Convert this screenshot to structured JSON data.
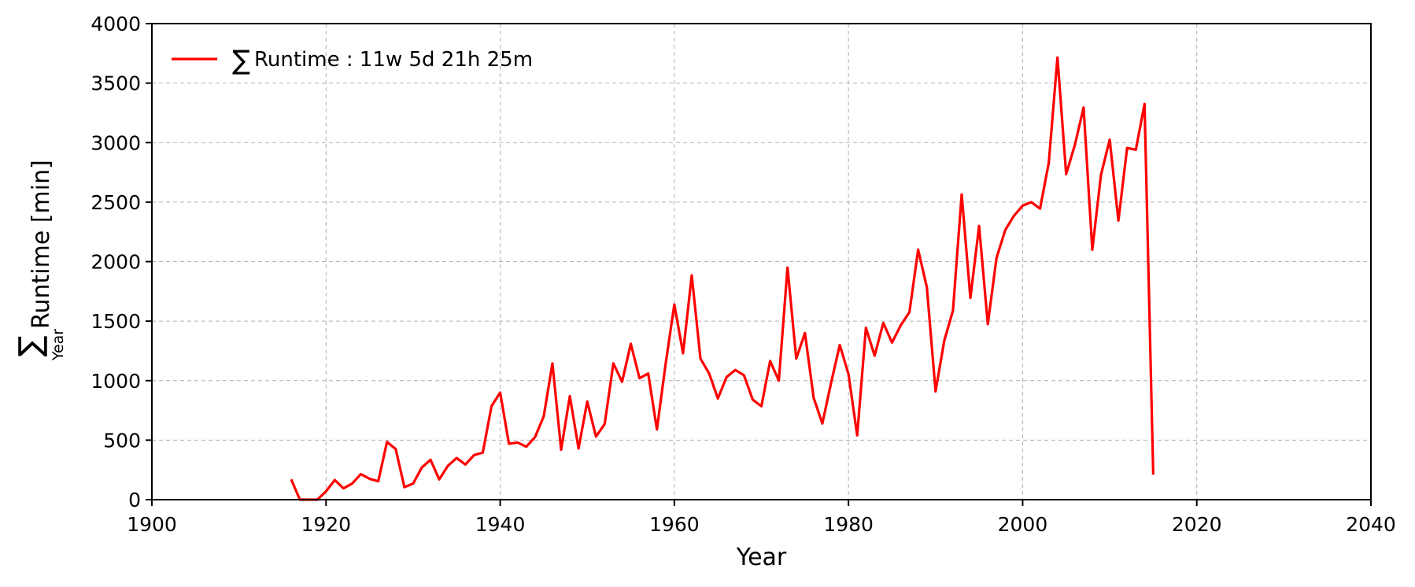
{
  "chart_data": {
    "type": "line",
    "xlabel": "Year",
    "ylabel_symbol": "∑",
    "ylabel_subscript": "Year",
    "ylabel_text": "Runtime [min]",
    "xlim": [
      1900,
      2040
    ],
    "ylim": [
      0,
      4000
    ],
    "xticks": [
      1900,
      1920,
      1940,
      1960,
      1980,
      2000,
      2020,
      2040
    ],
    "yticks": [
      0,
      500,
      1000,
      1500,
      2000,
      2500,
      3000,
      3500,
      4000
    ],
    "grid": true,
    "legend_position": "top-left",
    "series": [
      {
        "name_symbol": "∑",
        "name_text": "Runtime : 11w 5d 21h 25m",
        "color": "#ff0000",
        "x": [
          1916,
          1917,
          1918,
          1919,
          1920,
          1921,
          1922,
          1923,
          1924,
          1925,
          1926,
          1927,
          1928,
          1929,
          1930,
          1931,
          1932,
          1933,
          1934,
          1935,
          1936,
          1937,
          1938,
          1939,
          1940,
          1941,
          1942,
          1943,
          1944,
          1945,
          1946,
          1947,
          1948,
          1949,
          1950,
          1951,
          1952,
          1953,
          1954,
          1955,
          1956,
          1957,
          1958,
          1959,
          1960,
          1961,
          1962,
          1963,
          1964,
          1965,
          1966,
          1967,
          1968,
          1969,
          1970,
          1971,
          1972,
          1973,
          1974,
          1975,
          1976,
          1977,
          1978,
          1979,
          1980,
          1981,
          1982,
          1983,
          1984,
          1985,
          1986,
          1987,
          1988,
          1989,
          1990,
          1991,
          1992,
          1993,
          1994,
          1995,
          1996,
          1997,
          1998,
          1999,
          2000,
          2001,
          2002,
          2003,
          2004,
          2005,
          2006,
          2007,
          2008,
          2009,
          2010,
          2011,
          2012,
          2013,
          2014,
          2015
        ],
        "y": [
          170,
          0,
          0,
          0,
          70,
          165,
          95,
          135,
          215,
          175,
          155,
          485,
          425,
          105,
          135,
          270,
          335,
          170,
          285,
          350,
          295,
          375,
          395,
          785,
          900,
          470,
          480,
          445,
          525,
          700,
          1145,
          420,
          870,
          430,
          825,
          530,
          635,
          1145,
          990,
          1310,
          1020,
          1060,
          590,
          1140,
          1640,
          1230,
          1885,
          1185,
          1060,
          850,
          1030,
          1090,
          1045,
          840,
          785,
          1165,
          1000,
          1950,
          1185,
          1400,
          855,
          640,
          980,
          1300,
          1055,
          540,
          1445,
          1210,
          1485,
          1320,
          1465,
          1575,
          2100,
          1785,
          910,
          1335,
          1590,
          2565,
          1695,
          2300,
          1475,
          2030,
          2265,
          2385,
          2470,
          2500,
          2445,
          2830,
          3715,
          2735,
          2980,
          3295,
          2100,
          2730,
          3025,
          2345,
          2955,
          2940,
          3325,
          210
        ]
      }
    ]
  }
}
